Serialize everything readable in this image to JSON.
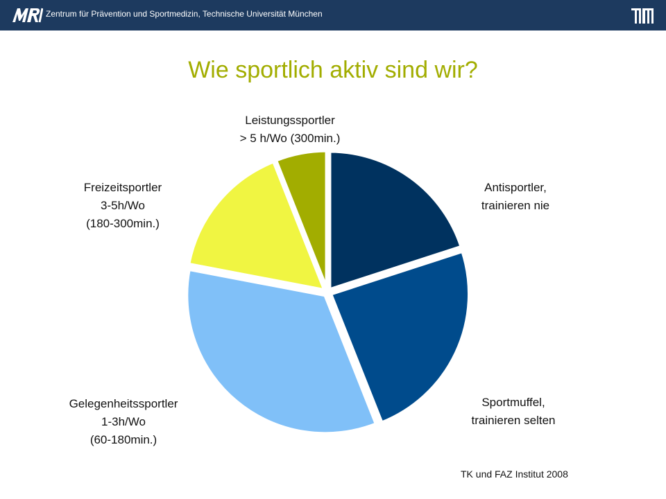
{
  "header": {
    "institution": "Zentrum für Prävention und Sportmedizin, Technische Universität München",
    "left_logo_text": "MRI",
    "right_logo_text": "TUM",
    "bar_color": "#1d3a5f"
  },
  "title": "Wie sportlich aktiv sind wir?",
  "chart_data": {
    "type": "pie",
    "unit": "percent (estimated)",
    "start": "12 o'clock, clockwise",
    "title": "",
    "slices": [
      {
        "name": "Antisportler, trainieren nie",
        "value": 20,
        "color": "#00325f"
      },
      {
        "name": "Sportmuffel, trainieren selten",
        "value": 24,
        "color": "#004b8c"
      },
      {
        "name": "Gelegenheitssportler 1-3h/Wo (60-180min.)",
        "value": 34,
        "color": "#80c0f8"
      },
      {
        "name": "Freizeitsportler 3-5h/Wo (180-300min.)",
        "value": 16,
        "color": "#f0f542"
      },
      {
        "name": "Leistungssportler > 5 h/Wo (300min.)",
        "value": 6,
        "color": "#a2ad00"
      }
    ],
    "labels": {
      "antisportler": [
        "Antisportler,",
        "trainieren nie"
      ],
      "sportmuffel": [
        "Sportmuffel,",
        "trainieren selten"
      ],
      "gelegenheit": [
        "Gelegenheitssportler",
        "1-3h/Wo",
        "(60-180min.)"
      ],
      "freizeit": [
        "Freizeitsportler",
        "3-5h/Wo",
        "(180-300min.)"
      ],
      "leistung": [
        "Leistungssportler",
        "> 5 h/Wo (300min.)"
      ]
    }
  },
  "source": "TK und FAZ Institut 2008"
}
